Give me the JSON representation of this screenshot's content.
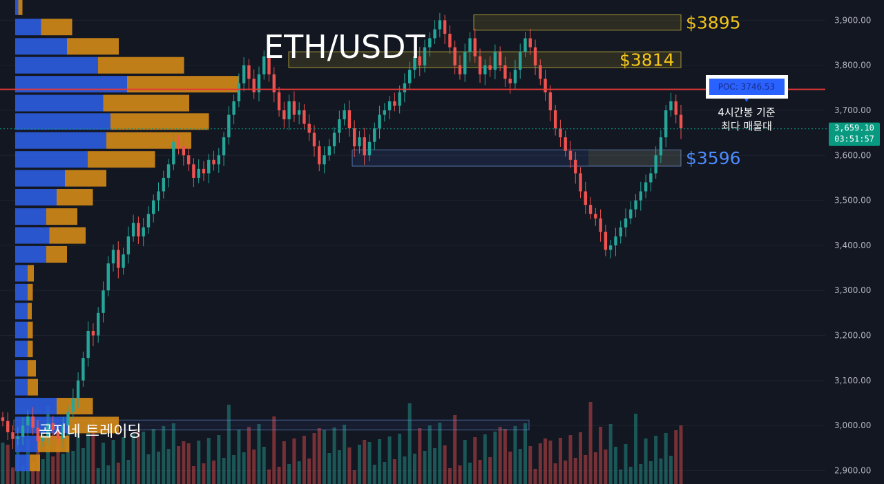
{
  "chart_data": {
    "type": "candlestick",
    "title": "ETH/USDT",
    "watermark": "곰지네 트레이딩",
    "ylim": [
      2870,
      3945
    ],
    "y_ticks": [
      "3,900.00",
      "3,800.00",
      "3,700.00",
      "3,600.00",
      "3,500.00",
      "3,400.00",
      "3,300.00",
      "3,200.00",
      "3,100.00",
      "3,000.00",
      "2,900.00"
    ],
    "y_tick_values": [
      3900,
      3800,
      3700,
      3600,
      3500,
      3400,
      3300,
      3200,
      3100,
      3000,
      2900
    ],
    "last_price": {
      "price": 3659.1,
      "price_label": "3,659.10",
      "countdown": "03:51:57",
      "color": "#089981"
    },
    "poc": {
      "price": 3746.53,
      "label": "POC: 3746.53",
      "line_color": "#e53935"
    },
    "poc_note": [
      "4시간봉 기준",
      "최다 매물대"
    ],
    "levels": [
      {
        "label": "$3895",
        "price": 3895,
        "color": "#f5c518",
        "zone_low": 3878,
        "zone_high": 3912
      },
      {
        "label": "$3814",
        "price": 3814,
        "color": "#f5c518",
        "zone_low": 3795,
        "zone_high": 3830
      },
      {
        "label": "$3596",
        "price": 3596,
        "color": "#4d8cff",
        "zone_low": 3576,
        "zone_high": 3612
      }
    ],
    "lower_box": {
      "low": 2990,
      "high": 3012
    },
    "colors": {
      "up": "#26a69a",
      "down": "#ef5350",
      "vp_up": "#2c5cdc",
      "vp_down": "#d48a17"
    },
    "volume_profile": [
      {
        "price": 3930,
        "up": 3,
        "down": 4
      },
      {
        "price": 3885,
        "up": 25,
        "down": 30
      },
      {
        "price": 3842,
        "up": 50,
        "down": 50
      },
      {
        "price": 3800,
        "up": 80,
        "down": 83
      },
      {
        "price": 3758,
        "up": 108,
        "down": 108
      },
      {
        "price": 3716,
        "up": 85,
        "down": 83
      },
      {
        "price": 3675,
        "up": 92,
        "down": 95
      },
      {
        "price": 3633,
        "up": 88,
        "down": 82
      },
      {
        "price": 3591,
        "up": 70,
        "down": 65
      },
      {
        "price": 3549,
        "up": 48,
        "down": 40
      },
      {
        "price": 3507,
        "up": 40,
        "down": 35
      },
      {
        "price": 3464,
        "up": 30,
        "down": 30
      },
      {
        "price": 3422,
        "up": 33,
        "down": 35
      },
      {
        "price": 3380,
        "up": 30,
        "down": 20
      },
      {
        "price": 3338,
        "up": 12,
        "down": 6
      },
      {
        "price": 3296,
        "up": 12,
        "down": 5
      },
      {
        "price": 3254,
        "up": 12,
        "down": 4
      },
      {
        "price": 3212,
        "up": 12,
        "down": 5
      },
      {
        "price": 3170,
        "up": 12,
        "down": 5
      },
      {
        "price": 3127,
        "up": 12,
        "down": 8
      },
      {
        "price": 3085,
        "up": 12,
        "down": 10
      },
      {
        "price": 3043,
        "up": 40,
        "down": 35
      },
      {
        "price": 3001,
        "up": 52,
        "down": 48
      },
      {
        "price": 2959,
        "up": 22,
        "down": 30
      },
      {
        "price": 2917,
        "up": 14,
        "down": 10
      }
    ],
    "close_path": [
      3010,
      2985,
      2970,
      2975,
      3000,
      3020,
      2995,
      2965,
      2975,
      3005,
      2990,
      2970,
      3000,
      3030,
      3060,
      3100,
      3150,
      3210,
      3200,
      3250,
      3300,
      3360,
      3390,
      3350,
      3380,
      3420,
      3450,
      3420,
      3440,
      3470,
      3500,
      3520,
      3550,
      3580,
      3630,
      3620,
      3600,
      3580,
      3550,
      3570,
      3560,
      3590,
      3580,
      3600,
      3640,
      3690,
      3720,
      3760,
      3800,
      3770,
      3740,
      3780,
      3820,
      3780,
      3740,
      3700,
      3680,
      3720,
      3690,
      3700,
      3670,
      3650,
      3620,
      3580,
      3600,
      3620,
      3650,
      3680,
      3700,
      3660,
      3620,
      3640,
      3600,
      3630,
      3660,
      3690,
      3700,
      3720,
      3710,
      3740,
      3760,
      3790,
      3820,
      3800,
      3840,
      3860,
      3880,
      3900,
      3870,
      3840,
      3800,
      3780,
      3830,
      3860,
      3820,
      3780,
      3800,
      3790,
      3830,
      3800,
      3770,
      3760,
      3790,
      3830,
      3860,
      3840,
      3800,
      3770,
      3740,
      3700,
      3660,
      3640,
      3610,
      3590,
      3560,
      3520,
      3490,
      3470,
      3460,
      3430,
      3390,
      3400,
      3420,
      3440,
      3460,
      3480,
      3500,
      3520,
      3540,
      3560,
      3600,
      3640,
      3700,
      3720,
      3690,
      3660
    ]
  }
}
